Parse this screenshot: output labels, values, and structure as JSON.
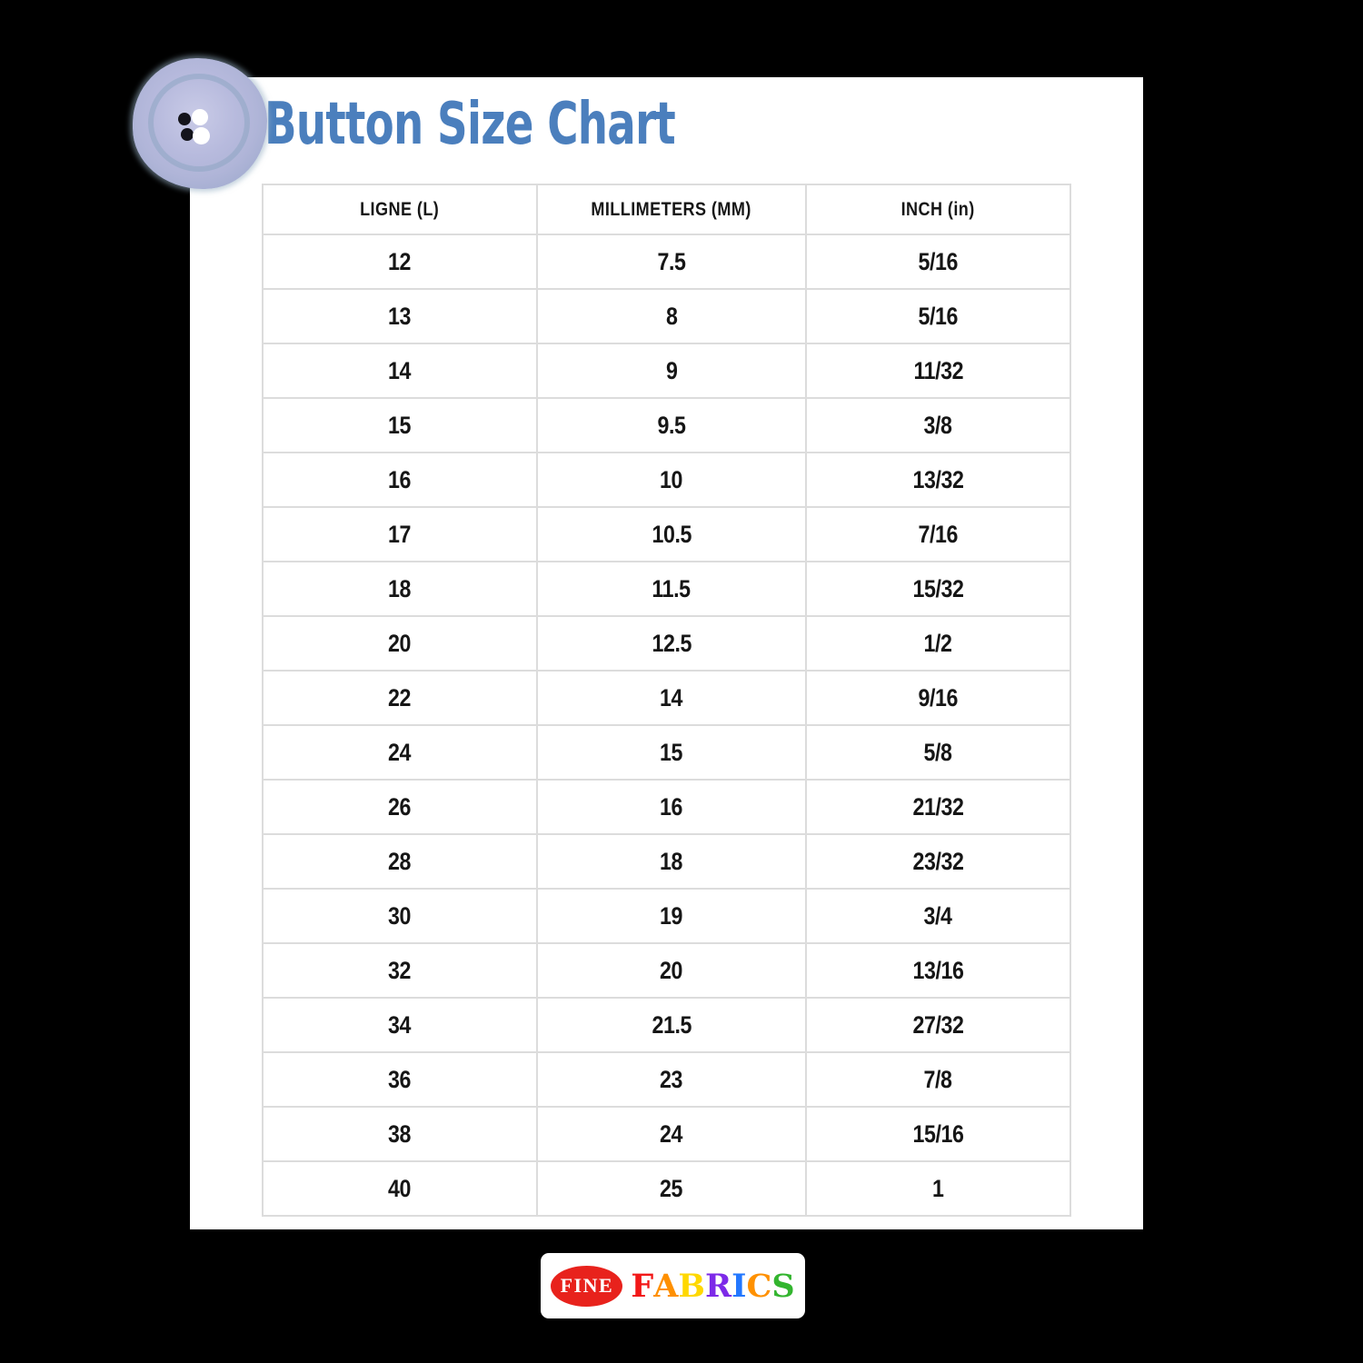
{
  "chart_data": {
    "type": "table",
    "title": "Button Size Chart",
    "columns": [
      "LIGNE (L)",
      "MILLIMETERS (MM)",
      "INCH (in)"
    ],
    "rows": [
      [
        "12",
        "7.5",
        "5/16"
      ],
      [
        "13",
        "8",
        "5/16"
      ],
      [
        "14",
        "9",
        "11/32"
      ],
      [
        "15",
        "9.5",
        "3/8"
      ],
      [
        "16",
        "10",
        "13/32"
      ],
      [
        "17",
        "10.5",
        "7/16"
      ],
      [
        "18",
        "11.5",
        "15/32"
      ],
      [
        "20",
        "12.5",
        "1/2"
      ],
      [
        "22",
        "14",
        "9/16"
      ],
      [
        "24",
        "15",
        "5/8"
      ],
      [
        "26",
        "16",
        "21/32"
      ],
      [
        "28",
        "18",
        "23/32"
      ],
      [
        "30",
        "19",
        "3/4"
      ],
      [
        "32",
        "20",
        "13/16"
      ],
      [
        "34",
        "21.5",
        "27/32"
      ],
      [
        "36",
        "23",
        "7/8"
      ],
      [
        "38",
        "24",
        "15/16"
      ],
      [
        "40",
        "25",
        "1"
      ]
    ]
  },
  "theme": {
    "canvas_background": "#000000",
    "page_background": "#ffffff",
    "title_color": "#4b7fbd",
    "table_border_color": "#dcdcdc",
    "table_text_color": "#161616",
    "button_body_color": "#b7badd",
    "button_rim_color": "#8ea6c2"
  },
  "brand": {
    "oval_text": "FINE",
    "oval_color": "#e8221c",
    "wordmark_letters": [
      {
        "ch": "F",
        "color": "#f21818"
      },
      {
        "ch": "A",
        "color": "#ff9000"
      },
      {
        "ch": "B",
        "color": "#ffd800"
      },
      {
        "ch": "R",
        "color": "#7d2ae8"
      },
      {
        "ch": "I",
        "color": "#2277ff"
      },
      {
        "ch": "C",
        "color": "#ff9100"
      },
      {
        "ch": "S",
        "color": "#33b52f"
      }
    ]
  }
}
